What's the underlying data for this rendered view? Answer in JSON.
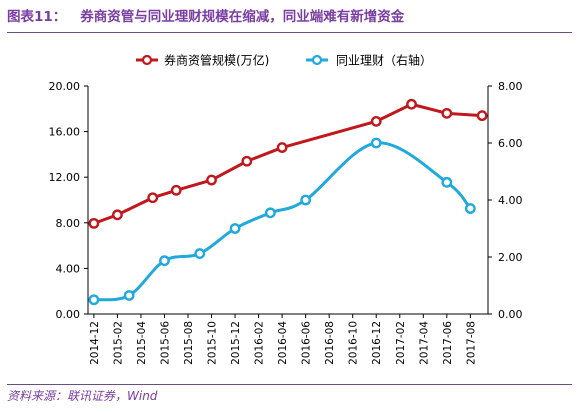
{
  "figure": {
    "number": "图表11：",
    "title": "券商资管与同业理财规模在缩减，同业端难有新增资金",
    "source": "资料来源：联讯证券，Wind"
  },
  "colors": {
    "title": "#7a3ea0",
    "series_1": "#c0181c",
    "series_2": "#1fa9dc",
    "axis": "#000000"
  },
  "chart_data": {
    "type": "line",
    "categories": [
      "2014-12",
      "2015-02",
      "2015-04",
      "2015-06",
      "2015-08",
      "2015-10",
      "2015-12",
      "2016-02",
      "2016-04",
      "2016-06",
      "2016-08",
      "2016-10",
      "2016-12",
      "2017-02",
      "2017-04",
      "2017-06",
      "2017-08"
    ],
    "left_axis": {
      "ylim": [
        0,
        20
      ],
      "ticks": [
        "0.00",
        "4.00",
        "8.00",
        "12.00",
        "16.00",
        "20.00"
      ]
    },
    "right_axis": {
      "ylim": [
        0,
        8
      ],
      "ticks": [
        "0.00",
        "2.00",
        "4.00",
        "6.00",
        "8.00"
      ]
    },
    "legend_position": "top",
    "series": [
      {
        "name": "券商资管规模(万亿)",
        "axis": "left",
        "color": "#c0181c",
        "smooth": false,
        "points": [
          {
            "x": "2014-12",
            "y": 7.95
          },
          {
            "x": "2015-02",
            "y": 8.7
          },
          {
            "x": "2015-05",
            "y": 10.2
          },
          {
            "x": "2015-07",
            "y": 10.85
          },
          {
            "x": "2015-10",
            "y": 11.75
          },
          {
            "x": "2016-01",
            "y": 13.4
          },
          {
            "x": "2016-04",
            "y": 14.6
          },
          {
            "x": "2016-12",
            "y": 16.9
          },
          {
            "x": "2017-03",
            "y": 18.4
          },
          {
            "x": "2017-06",
            "y": 17.6
          },
          {
            "x": "2017-09",
            "y": 17.4
          }
        ]
      },
      {
        "name": "同业理财（右轴）",
        "axis": "right",
        "color": "#1fa9dc",
        "smooth": true,
        "points": [
          {
            "x": "2014-12",
            "y": 0.5
          },
          {
            "x": "2015-03",
            "y": 0.65
          },
          {
            "x": "2015-06",
            "y": 1.87
          },
          {
            "x": "2015-09",
            "y": 2.12
          },
          {
            "x": "2015-12",
            "y": 3.0
          },
          {
            "x": "2016-03",
            "y": 3.55
          },
          {
            "x": "2016-06",
            "y": 4.0
          },
          {
            "x": "2016-12",
            "y": 6.0
          },
          {
            "x": "2017-06",
            "y": 4.62
          },
          {
            "x": "2017-08",
            "y": 3.7
          }
        ]
      }
    ]
  }
}
